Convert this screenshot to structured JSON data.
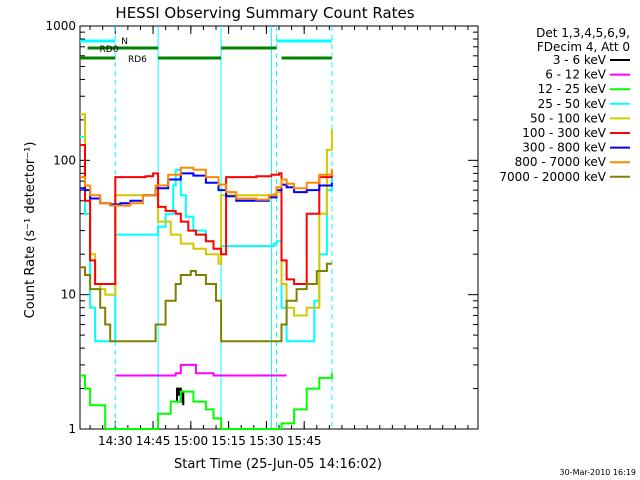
{
  "chart_data": {
    "type": "line",
    "title": "HESSI Observing Summary Count Rates",
    "xlabel": "Start Time (25-Jun-05 14:16:02)",
    "ylabel": "Count Rate (s⁻¹ detector⁻¹)",
    "xlim_min": [
      0,
      158
    ],
    "ylim": [
      1,
      1000
    ],
    "y_scale": "log",
    "x_ticks": [
      {
        "t": 14,
        "label": "14:30"
      },
      {
        "t": 29,
        "label": "14:45"
      },
      {
        "t": 44,
        "label": "15:00"
      },
      {
        "t": 59,
        "label": "15:15"
      },
      {
        "t": 74,
        "label": "15:30"
      },
      {
        "t": 89,
        "label": "15:45"
      }
    ],
    "y_ticks": [
      {
        "v": 1,
        "label": "1"
      },
      {
        "v": 10,
        "label": "10"
      },
      {
        "v": 100,
        "label": "100"
      },
      {
        "v": 1000,
        "label": "1000"
      }
    ],
    "legend_header": [
      "Det 1,3,4,5,6,9,",
      "FDecim 4, Att 0"
    ],
    "legend_placement": "right",
    "series": [
      {
        "name": "3 - 6 keV",
        "color": "#000000",
        "x": [
          38,
          38.5,
          39,
          39.5,
          40,
          40.5,
          41
        ],
        "y": [
          1.6,
          2.0,
          1.8,
          2.0,
          1.6,
          1.9,
          1.5
        ]
      },
      {
        "name": "6 - 12 keV",
        "color": "#ff00ff",
        "x": [
          14,
          20,
          30,
          38,
          40,
          46,
          53,
          58,
          62,
          70,
          78,
          80,
          82
        ],
        "y": [
          2.5,
          2.5,
          2.5,
          2.6,
          3.0,
          2.6,
          2.5,
          2.5,
          2.5,
          2.5,
          2.5,
          2.5,
          2.5
        ]
      },
      {
        "name": "12 - 25 keV",
        "color": "#00ff00",
        "x": [
          0,
          2,
          4,
          10,
          20,
          29,
          31,
          36,
          40,
          45,
          50,
          53,
          56,
          62,
          70,
          78,
          80,
          85,
          90,
          95,
          100
        ],
        "y": [
          2.5,
          2.0,
          1.5,
          1.0,
          1.0,
          1.0,
          1.3,
          1.6,
          1.9,
          1.6,
          1.4,
          1.2,
          1.0,
          1.0,
          1.0,
          1.0,
          1.1,
          1.4,
          2.0,
          2.4,
          2.6
        ]
      },
      {
        "name": "25 - 50 keV",
        "color": "#00ffff",
        "x": [
          0,
          2,
          4,
          6,
          10,
          12,
          14,
          20,
          28,
          31,
          34,
          37,
          38,
          40,
          42,
          45,
          50,
          53,
          56,
          62,
          70,
          77,
          78,
          80,
          82,
          85,
          88,
          90,
          93,
          95,
          98,
          100
        ],
        "y": [
          150,
          40,
          8,
          4.5,
          4.5,
          4.5,
          28,
          28,
          28,
          32,
          40,
          65,
          85,
          55,
          38,
          30,
          25,
          22,
          23,
          23,
          23,
          24,
          25,
          8,
          4.5,
          4.5,
          4.5,
          4.5,
          9,
          20,
          60,
          80
        ]
      },
      {
        "name": "50 - 100 keV",
        "color": "#d4c800",
        "x": [
          0,
          2,
          4,
          6,
          8,
          10,
          14,
          20,
          28,
          31,
          36,
          40,
          45,
          50,
          55,
          56,
          58,
          62,
          70,
          77,
          78,
          80,
          82,
          85,
          88,
          90,
          95,
          98,
          100
        ],
        "y": [
          220,
          60,
          20,
          12,
          11,
          10,
          55,
          55,
          55,
          35,
          28,
          24,
          22,
          20,
          17,
          55,
          55,
          55,
          55,
          56,
          58,
          12,
          8,
          7,
          7,
          8,
          40,
          120,
          170
        ]
      },
      {
        "name": "100 - 300 keV",
        "color": "#ff0000",
        "x": [
          0,
          2,
          4,
          6,
          10,
          14,
          20,
          26,
          29,
          31,
          34,
          38,
          40,
          43,
          46,
          50,
          53,
          56,
          58,
          62,
          70,
          76,
          79,
          80,
          82,
          85,
          90,
          95,
          100
        ],
        "y": [
          130,
          50,
          18,
          12,
          12,
          75,
          75,
          76,
          80,
          45,
          42,
          40,
          35,
          30,
          28,
          25,
          22,
          20,
          75,
          75,
          76,
          78,
          80,
          18,
          13,
          12,
          40,
          75,
          85
        ]
      },
      {
        "name": "300 - 800 keV",
        "color": "#0000ff",
        "x": [
          0,
          2,
          4,
          8,
          12,
          16,
          20,
          25,
          30,
          35,
          40,
          45,
          50,
          55,
          58,
          62,
          70,
          75,
          78,
          80,
          82,
          85,
          90,
          95,
          100
        ],
        "y": [
          62,
          60,
          52,
          48,
          47,
          48,
          50,
          55,
          62,
          72,
          80,
          77,
          68,
          60,
          54,
          50,
          50,
          53,
          60,
          66,
          63,
          58,
          60,
          65,
          68
        ]
      },
      {
        "name": "800 - 7000 keV",
        "color": "#ff8800",
        "x": [
          0,
          2,
          4,
          8,
          12,
          16,
          20,
          25,
          30,
          35,
          40,
          45,
          50,
          55,
          58,
          62,
          70,
          75,
          78,
          80,
          82,
          85,
          90,
          95,
          100
        ],
        "y": [
          75,
          65,
          55,
          48,
          46,
          46,
          48,
          55,
          65,
          78,
          88,
          85,
          75,
          66,
          58,
          52,
          51,
          55,
          63,
          72,
          67,
          62,
          68,
          78,
          86
        ]
      },
      {
        "name": "7000 - 20000 keV",
        "color": "#808000",
        "x": [
          0,
          2,
          4,
          8,
          10,
          12,
          14,
          20,
          28,
          30,
          34,
          38,
          40,
          44,
          46,
          50,
          54,
          56,
          62,
          70,
          76,
          78,
          80,
          82,
          86,
          90,
          94,
          98,
          100
        ],
        "y": [
          16,
          14,
          11,
          8,
          6,
          4.5,
          4.5,
          4.5,
          4.5,
          6,
          9,
          12,
          14,
          15,
          14,
          12,
          9,
          4.5,
          4.5,
          4.5,
          4.5,
          4.5,
          6,
          9,
          11,
          12,
          15,
          17,
          17
        ]
      }
    ],
    "attenuator_bars": [
      {
        "label": "N",
        "color": "#00ffff",
        "segments": [
          [
            0,
            14
          ]
        ]
      },
      {
        "label": "",
        "color": "#00ffff",
        "segments": [
          [
            78,
            100
          ]
        ]
      }
    ],
    "saa_bars": [
      {
        "label": "RD0",
        "color": "#008000",
        "segments": [
          [
            3,
            14
          ],
          [
            14,
            31
          ],
          [
            56,
            78
          ]
        ]
      },
      {
        "label": "RD6",
        "color": "#008000",
        "segments": [
          [
            0,
            14
          ],
          [
            31,
            56
          ],
          [
            80,
            100
          ]
        ]
      }
    ],
    "vertical_markers": [
      {
        "t": 14,
        "color": "#00ffff",
        "style": "dashed"
      },
      {
        "t": 78,
        "color": "#00ffff",
        "style": "dashed"
      },
      {
        "t": 100,
        "color": "#00ffff",
        "style": "dashed"
      },
      {
        "t": 31,
        "color": "#00ffff",
        "style": "solid"
      },
      {
        "t": 56,
        "color": "#00ffff",
        "style": "solid"
      },
      {
        "t": 76,
        "color": "#00ffff",
        "style": "solid"
      }
    ]
  },
  "footer_date": "30-Mar-2010 16:19"
}
